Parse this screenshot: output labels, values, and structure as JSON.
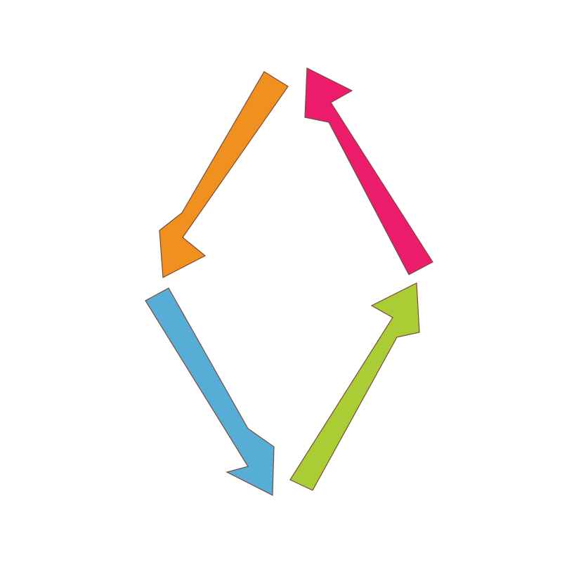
{
  "diagram": {
    "type": "cycle",
    "arrows": [
      {
        "id": "orange",
        "direction": "down-left",
        "color": "#F0901E"
      },
      {
        "id": "blue",
        "direction": "down-right",
        "color": "#56ADD6"
      },
      {
        "id": "green",
        "direction": "up-right",
        "color": "#AACD35"
      },
      {
        "id": "pink",
        "direction": "up-left",
        "color": "#EC1B6C"
      }
    ]
  }
}
